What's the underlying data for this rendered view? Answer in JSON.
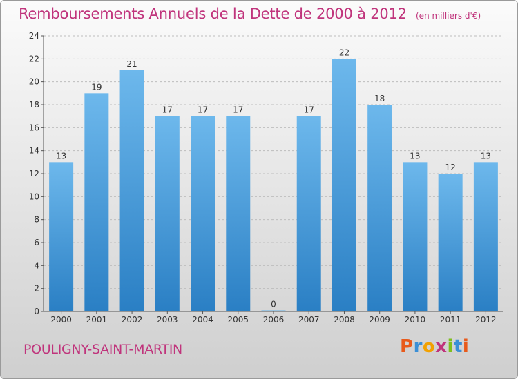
{
  "header": {
    "title": "Remboursements Annuels de la Dette de 2000 à 2012",
    "subtitle": "(en milliers d'€)"
  },
  "footer": {
    "city": "POULIGNY-SAINT-MARTIN",
    "brand_letters": [
      "P",
      "r",
      "o",
      "x",
      "i",
      "t",
      "i"
    ],
    "brand_colors": [
      "#e85a1b",
      "#3a8fd6",
      "#f2a100",
      "#c0347c",
      "#7fbf1e",
      "#3a8fd6",
      "#e85a1b"
    ]
  },
  "chart_data": {
    "type": "bar",
    "title": "Remboursements Annuels de la Dette de 2000 à 2012",
    "categories": [
      "2000",
      "2001",
      "2002",
      "2003",
      "2004",
      "2005",
      "2006",
      "2007",
      "2008",
      "2009",
      "2010",
      "2011",
      "2012"
    ],
    "values": [
      13,
      19,
      21,
      17,
      17,
      17,
      0,
      17,
      22,
      18,
      13,
      12,
      13
    ],
    "ylim": [
      0,
      24
    ],
    "yticks": [
      0,
      2,
      4,
      6,
      8,
      10,
      12,
      14,
      16,
      18,
      20,
      22,
      24
    ],
    "grid": true,
    "bar_color_top": "#6db8ec",
    "bar_color_bottom": "#2a7fc4"
  }
}
